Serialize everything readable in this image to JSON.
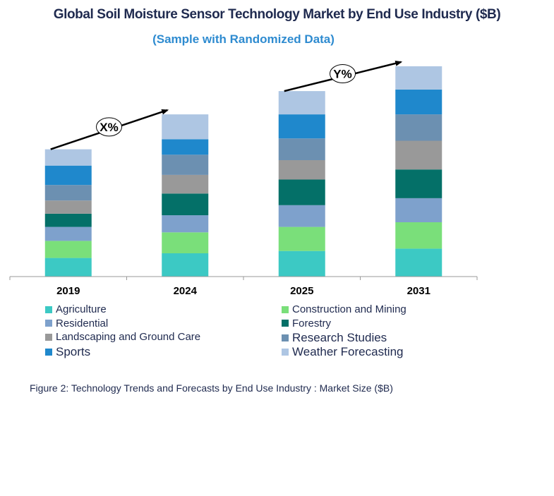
{
  "header": {
    "title": "Global Soil Moisture Sensor Technology Market by End Use Industry ($B)",
    "subtitle": "(Sample with Randomized Data)"
  },
  "caption": "Figure 2: Technology  Trends  and Forecasts by  End Use Industry  : Market Size ($B)",
  "annotations": [
    {
      "label": "X%",
      "from": "2019",
      "to": "2024"
    },
    {
      "label": "Y%",
      "from": "2025",
      "to": "2031"
    }
  ],
  "chart_data": {
    "type": "bar",
    "stacked": true,
    "title": "Global Soil Moisture Sensor Technology Market by End Use Industry ($B)",
    "categories": [
      "2019",
      "2024",
      "2025",
      "2031"
    ],
    "series": [
      {
        "name": "Agriculture",
        "color": "#3cc9c4",
        "values": [
          2.4,
          3.0,
          3.3,
          3.6
        ]
      },
      {
        "name": "Construction and Mining",
        "color": "#7adf7a",
        "values": [
          2.2,
          2.7,
          3.1,
          3.4
        ]
      },
      {
        "name": "Residential",
        "color": "#7ea1cc",
        "values": [
          1.8,
          2.2,
          2.8,
          3.1
        ]
      },
      {
        "name": "Forestry",
        "color": "#047068",
        "values": [
          1.7,
          2.8,
          3.3,
          3.7
        ]
      },
      {
        "name": "Landscaping and Ground Care",
        "color": "#999999",
        "values": [
          1.7,
          2.4,
          2.5,
          3.7
        ]
      },
      {
        "name": "Research Studies",
        "color": "#6c90b1",
        "values": [
          2.0,
          2.6,
          2.8,
          3.4
        ]
      },
      {
        "name": "Sports",
        "color": "#1f88cc",
        "values": [
          2.5,
          2.0,
          3.1,
          3.2
        ]
      },
      {
        "name": "Weather Forecasting",
        "color": "#aec6e3",
        "values": [
          2.1,
          3.2,
          3.0,
          3.0
        ]
      }
    ],
    "xlabel": "",
    "ylabel": "",
    "ylim": [
      0,
      28
    ],
    "grid": false,
    "legend_position": "bottom"
  }
}
